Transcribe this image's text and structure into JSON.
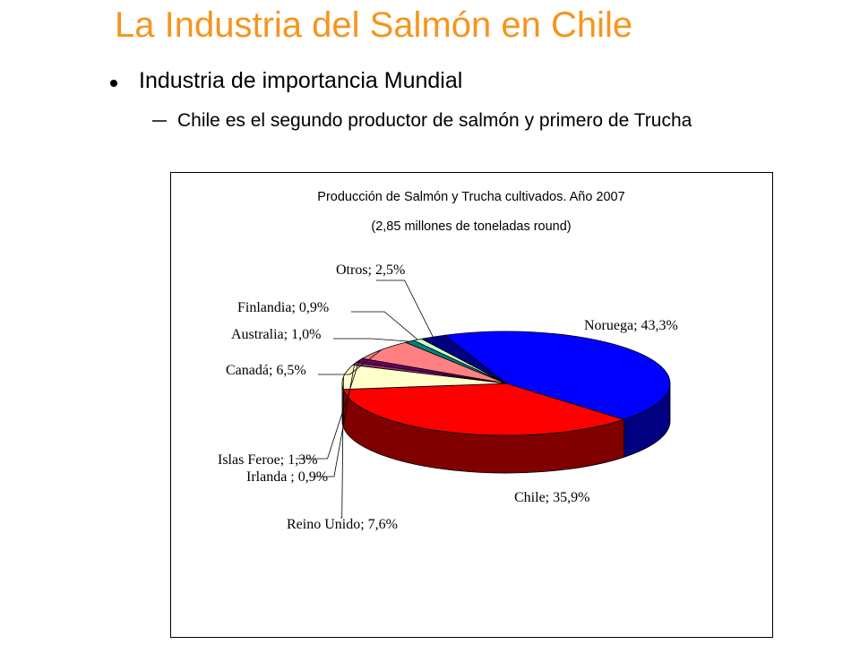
{
  "slide": {
    "title": "La Industria del Salmón en Chile",
    "bullets": [
      {
        "text": "Industria de importancia Mundial",
        "sub": [
          "Chile es el segundo productor de salmón y primero de Trucha"
        ]
      }
    ]
  },
  "chart_data": {
    "type": "pie",
    "title": "Producción de Salmón y Trucha cultivados. Año 2007",
    "subtitle": "(2,85 millones de toneladas round)",
    "values": [
      43.3,
      35.9,
      7.6,
      0.9,
      1.3,
      6.5,
      1.0,
      0.9,
      2.5
    ],
    "value_labels": [
      "Noruega; 43,3%",
      "Chile; 35,9%",
      "Reino Unido; 7,6%",
      "Irlanda ; 0,9%",
      "Islas Feroe; 1,3%",
      "Canadá; 6,5%",
      "Australia; 1,0%",
      "Finlandia; 0,9%",
      "Otros; 2,5%"
    ],
    "colors": [
      "#0000ff",
      "#ff0000",
      "#ffffcc",
      "#993366",
      "#660066",
      "#ff8080",
      "#008080",
      "#ccffcc",
      "#000080"
    ]
  }
}
